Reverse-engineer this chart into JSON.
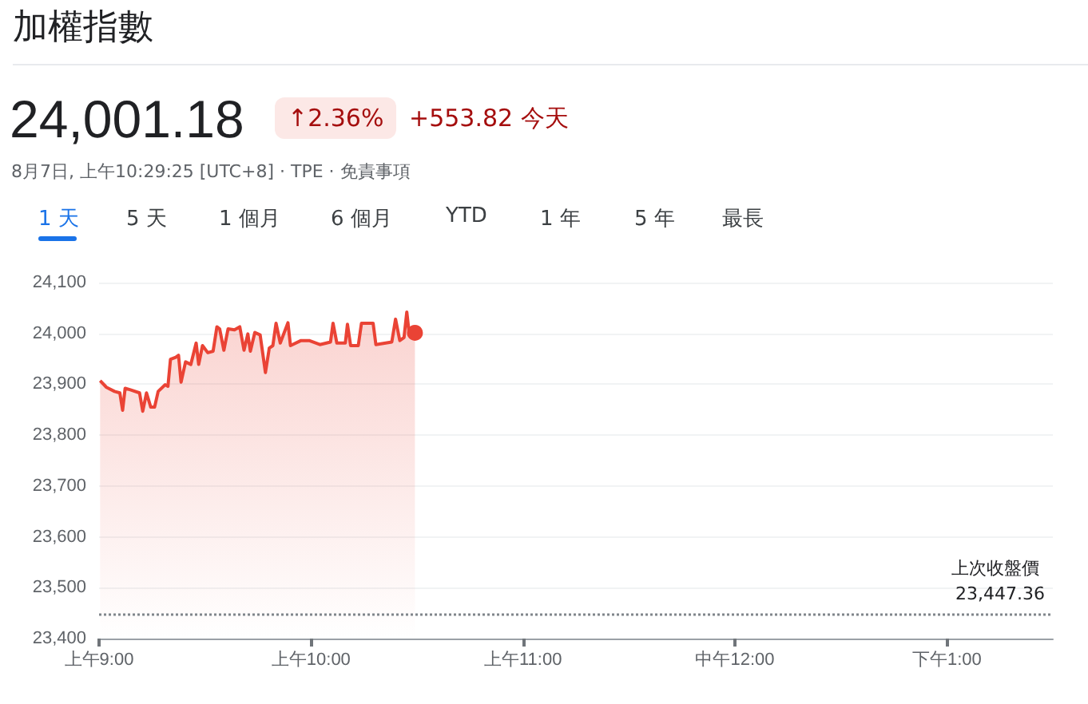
{
  "chart_data": {
    "type": "area",
    "title": "加權指數",
    "subtitle": "24,001.18",
    "annotations": [
      "↑2.36%",
      "+553.82 今天",
      "8月7日, 上午10:29:25 [UTC+8] · TPE · 免責事項",
      "1 天",
      "5 天",
      "1 個月",
      "6 個月",
      "YTD",
      "1 年",
      "5 年",
      "最長"
    ],
    "x": [
      "--08-07T09:00:18",
      "--08-07T09:02:06",
      "--08-07T09:04:23",
      "--08-07T09:05:53",
      "--08-07T09:06:40",
      "--08-07T09:07:23",
      "--08-07T09:08:53",
      "--08-07T09:11:28",
      "--08-07T09:12:22",
      "--08-07T09:13:26",
      "--08-07T09:14:38",
      "--08-07T09:15:43",
      "--08-07T09:16:44",
      "--08-07T09:18:43",
      "--08-07T09:19:30",
      "--08-07T09:20:13",
      "--08-07T09:21:43",
      "--08-07T09:22:30",
      "--08-07T09:23:13",
      "--08-07T09:24:29",
      "--08-07T09:25:59",
      "--08-07T09:27:29",
      "--08-07T09:28:12",
      "--08-07T09:29:17",
      "--08-07T09:30:47",
      "--08-07T09:32:17",
      "--08-07T09:33:22",
      "--08-07T09:34:08",
      "--08-07T09:35:20",
      "--08-07T09:36:32",
      "--08-07T09:38:20",
      "--08-07T09:39:50",
      "--08-07T09:41:02",
      "--08-07T09:42:07",
      "--08-07T09:42:50",
      "--08-07T09:44:06",
      "--08-07T09:45:36",
      "--08-07T09:47:06",
      "--08-07T09:48:11",
      "--08-07T09:49:12",
      "--08-07T09:50:06",
      "--08-07T09:51:18",
      "--08-07T09:53:28",
      "--08-07T09:54:11",
      "--08-07T09:57:11",
      "--08-07T09:59:28",
      "--08-07T10:02:31",
      "--08-07T10:05:31",
      "--08-07T10:06:14",
      "--08-07T10:07:19",
      "--08-07T10:09:43",
      "--08-07T10:10:19",
      "--08-07T10:11:13",
      "--08-07T10:13:23",
      "--08-07T10:14:17",
      "--08-07T10:17:35",
      "--08-07T10:18:22",
      "--08-07T10:22:52",
      "--08-07T10:23:56",
      "--08-07T10:25:08",
      "--08-07T10:26:20",
      "--08-07T10:27:07",
      "--08-07T10:27:50",
      "--08-07T10:29:25"
    ],
    "series": [
      {
        "color": "#ea4335",
        "values": [
          23907,
          23894,
          23886,
          23883,
          23849,
          23892,
          23889,
          23883,
          23847,
          23883,
          23855,
          23855,
          23886,
          23899,
          23896,
          23949,
          23953,
          23957,
          23904,
          23944,
          23939,
          23981,
          23939,
          23976,
          23962,
          23965,
          24013,
          24009,
          23967,
          24009,
          24007,
          24013,
          23967,
          23999,
          23965,
          24002,
          23997,
          23923,
          23971,
          23976,
          24020,
          23981,
          24021,
          23976,
          23986,
          23986,
          23978,
          23983,
          24020,
          23981,
          23981,
          24018,
          23976,
          23976,
          24020,
          24020,
          23978,
          23983,
          24028,
          23986,
          23992,
          24042,
          23997,
          24001.18
        ]
      }
    ],
    "xlim": [
      "--08-07T09:00",
      "--08-07T13:30"
    ],
    "xticks": [
      {
        "value": "--08-07T09:00",
        "label": "上午9:00"
      },
      {
        "value": "--08-07T10:00",
        "label": "上午10:00"
      },
      {
        "value": "--08-07T11:00",
        "label": "上午11:00"
      },
      {
        "value": "--08-07T12:00",
        "label": "中午12:00"
      },
      {
        "value": "--08-07T13:00",
        "label": "下午1:00"
      }
    ],
    "ylim": [
      23400,
      24100
    ],
    "yticks": [
      {
        "value": 23400,
        "label": "23,400"
      },
      {
        "value": 23500,
        "label": "23,500"
      },
      {
        "value": 23600,
        "label": "23,600"
      },
      {
        "value": 23700,
        "label": "23,700"
      },
      {
        "value": 23800,
        "label": "23,800"
      },
      {
        "value": 23900,
        "label": "23,900"
      },
      {
        "value": 24000,
        "label": "24,000"
      },
      {
        "value": 24100,
        "label": "24,100"
      }
    ],
    "grid": "y",
    "ref_lines": [
      {
        "axis": "y",
        "value": 23447.36,
        "label": "上次收盤價 23,447.36",
        "color": "#80868b",
        "line_style": "dotted"
      }
    ]
  }
}
